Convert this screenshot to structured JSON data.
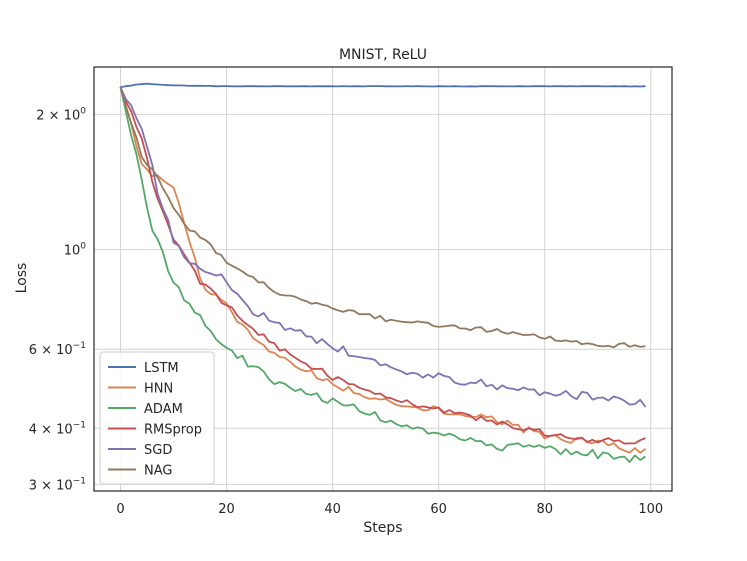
{
  "chart_data": {
    "type": "line",
    "title": "MNIST, ReLU",
    "xlabel": "Steps",
    "ylabel": "Loss",
    "yscale": "log",
    "xlim": [
      -5,
      104
    ],
    "ylim": [
      0.29,
      2.55
    ],
    "xticks": [
      0,
      20,
      40,
      60,
      80,
      100
    ],
    "xtick_labels": [
      "0",
      "20",
      "40",
      "60",
      "80",
      "100"
    ],
    "yticks": [
      {
        "value": 2.0,
        "base": "2 × 10",
        "exp": "0"
      },
      {
        "value": 1.0,
        "base": "10",
        "exp": "0"
      },
      {
        "value": 0.6,
        "base": "6 × 10",
        "exp": "−1"
      },
      {
        "value": 0.4,
        "base": "4 × 10",
        "exp": "−1"
      },
      {
        "value": 0.3,
        "base": "3 × 10",
        "exp": "−1"
      }
    ],
    "grid": true,
    "legend_position": "lower-left",
    "series": [
      {
        "name": "LSTM",
        "color": "#4c72b0",
        "anchors": [
          [
            0,
            2.3
          ],
          [
            3,
            2.33
          ],
          [
            5,
            2.34
          ],
          [
            10,
            2.32
          ],
          [
            20,
            2.31
          ],
          [
            40,
            2.31
          ],
          [
            60,
            2.31
          ],
          [
            80,
            2.31
          ],
          [
            99,
            2.31
          ]
        ],
        "noise": 0.001
      },
      {
        "name": "HNN",
        "color": "#dd8452",
        "anchors": [
          [
            0,
            2.3
          ],
          [
            4,
            1.55
          ],
          [
            8,
            1.4
          ],
          [
            10,
            1.38
          ],
          [
            13,
            1.05
          ],
          [
            15,
            0.85
          ],
          [
            20,
            0.75
          ],
          [
            25,
            0.63
          ],
          [
            30,
            0.58
          ],
          [
            40,
            0.5
          ],
          [
            50,
            0.46
          ],
          [
            60,
            0.44
          ],
          [
            70,
            0.42
          ],
          [
            80,
            0.385
          ],
          [
            90,
            0.37
          ],
          [
            99,
            0.355
          ]
        ],
        "noise": 0.02
      },
      {
        "name": "ADAM",
        "color": "#55a868",
        "anchors": [
          [
            0,
            2.3
          ],
          [
            3,
            1.6
          ],
          [
            6,
            1.12
          ],
          [
            10,
            0.85
          ],
          [
            15,
            0.7
          ],
          [
            20,
            0.6
          ],
          [
            25,
            0.55
          ],
          [
            30,
            0.5
          ],
          [
            40,
            0.46
          ],
          [
            50,
            0.42
          ],
          [
            60,
            0.385
          ],
          [
            70,
            0.365
          ],
          [
            80,
            0.36
          ],
          [
            90,
            0.35
          ],
          [
            99,
            0.34
          ]
        ],
        "noise": 0.022
      },
      {
        "name": "RMSprop",
        "color": "#c44e52",
        "anchors": [
          [
            0,
            2.3
          ],
          [
            4,
            1.75
          ],
          [
            7,
            1.3
          ],
          [
            10,
            1.06
          ],
          [
            15,
            0.85
          ],
          [
            20,
            0.75
          ],
          [
            25,
            0.67
          ],
          [
            30,
            0.6
          ],
          [
            40,
            0.52
          ],
          [
            50,
            0.47
          ],
          [
            60,
            0.44
          ],
          [
            70,
            0.415
          ],
          [
            80,
            0.39
          ],
          [
            90,
            0.375
          ],
          [
            99,
            0.375
          ]
        ],
        "noise": 0.015
      },
      {
        "name": "SGD",
        "color": "#8172b3",
        "anchors": [
          [
            0,
            2.3
          ],
          [
            4,
            1.9
          ],
          [
            7,
            1.35
          ],
          [
            10,
            1.05
          ],
          [
            12,
            0.97
          ],
          [
            15,
            0.92
          ],
          [
            20,
            0.85
          ],
          [
            25,
            0.73
          ],
          [
            30,
            0.68
          ],
          [
            40,
            0.61
          ],
          [
            50,
            0.55
          ],
          [
            60,
            0.52
          ],
          [
            70,
            0.5
          ],
          [
            80,
            0.48
          ],
          [
            90,
            0.47
          ],
          [
            99,
            0.455
          ]
        ],
        "noise": 0.022
      },
      {
        "name": "NAG",
        "color": "#937860",
        "anchors": [
          [
            0,
            2.3
          ],
          [
            4,
            1.62
          ],
          [
            8,
            1.38
          ],
          [
            12,
            1.13
          ],
          [
            16,
            1.05
          ],
          [
            20,
            0.94
          ],
          [
            25,
            0.86
          ],
          [
            30,
            0.8
          ],
          [
            40,
            0.74
          ],
          [
            50,
            0.7
          ],
          [
            60,
            0.68
          ],
          [
            70,
            0.66
          ],
          [
            80,
            0.64
          ],
          [
            90,
            0.61
          ],
          [
            99,
            0.615
          ]
        ],
        "noise": 0.012
      }
    ]
  }
}
